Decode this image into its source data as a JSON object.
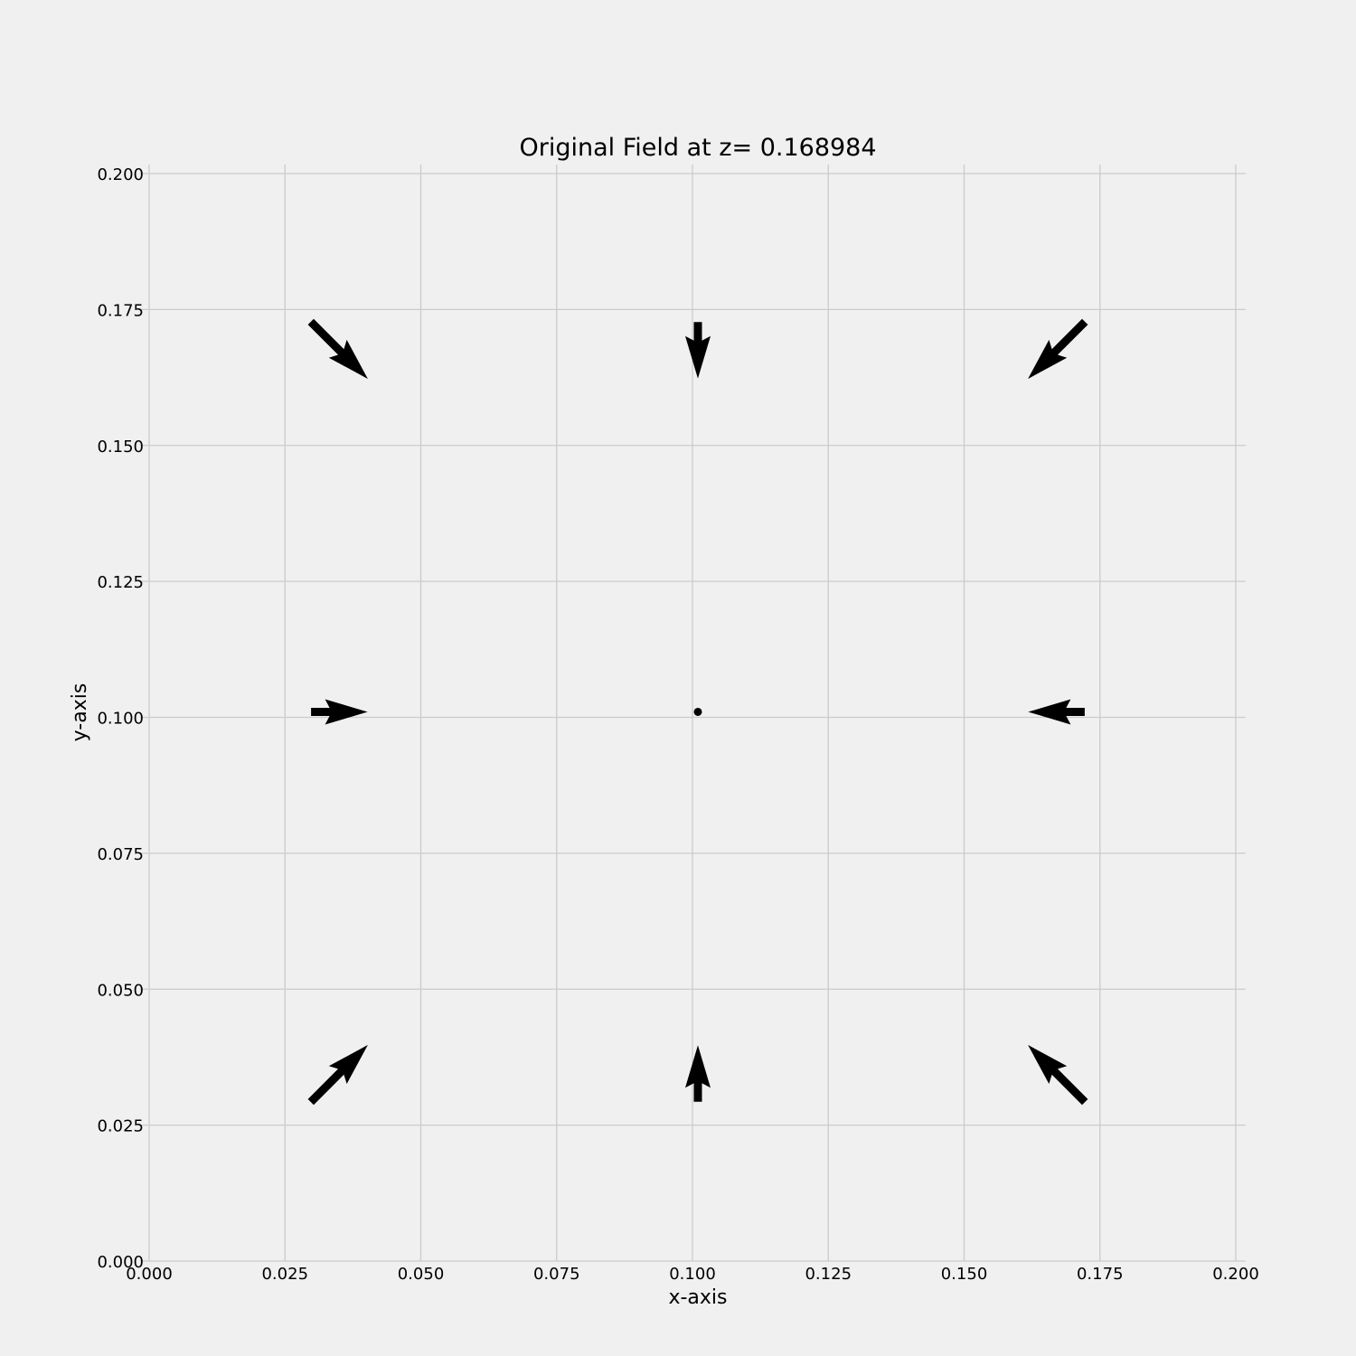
{
  "chart_data": {
    "type": "quiver",
    "title": "Original Field at z= 0.168984",
    "xlabel": "x-axis",
    "ylabel": "y-axis",
    "xlim": [
      0,
      0.2
    ],
    "ylim": [
      0,
      0.2
    ],
    "xticks": [
      "0.000",
      "0.025",
      "0.050",
      "0.075",
      "0.100",
      "0.125",
      "0.150",
      "0.175",
      "0.200"
    ],
    "yticks": [
      "0.000",
      "0.025",
      "0.050",
      "0.075",
      "0.100",
      "0.125",
      "0.150",
      "0.175",
      "0.200"
    ],
    "grid": true,
    "vectors": [
      {
        "x": 0.035,
        "y": 0.0345,
        "u": 0.0105,
        "v": 0.0105
      },
      {
        "x": 0.101,
        "y": 0.0345,
        "u": 0.0,
        "v": 0.0104
      },
      {
        "x": 0.167,
        "y": 0.0345,
        "u": -0.0105,
        "v": 0.0105
      },
      {
        "x": 0.035,
        "y": 0.101,
        "u": 0.0104,
        "v": 0.0
      },
      {
        "x": 0.101,
        "y": 0.101,
        "u": 0.0,
        "v": 0.0
      },
      {
        "x": 0.167,
        "y": 0.101,
        "u": -0.0104,
        "v": 0.0
      },
      {
        "x": 0.035,
        "y": 0.1675,
        "u": 0.0105,
        "v": -0.0105
      },
      {
        "x": 0.101,
        "y": 0.1675,
        "u": 0.0,
        "v": -0.0104
      },
      {
        "x": 0.167,
        "y": 0.1675,
        "u": -0.0105,
        "v": -0.0105
      }
    ]
  }
}
